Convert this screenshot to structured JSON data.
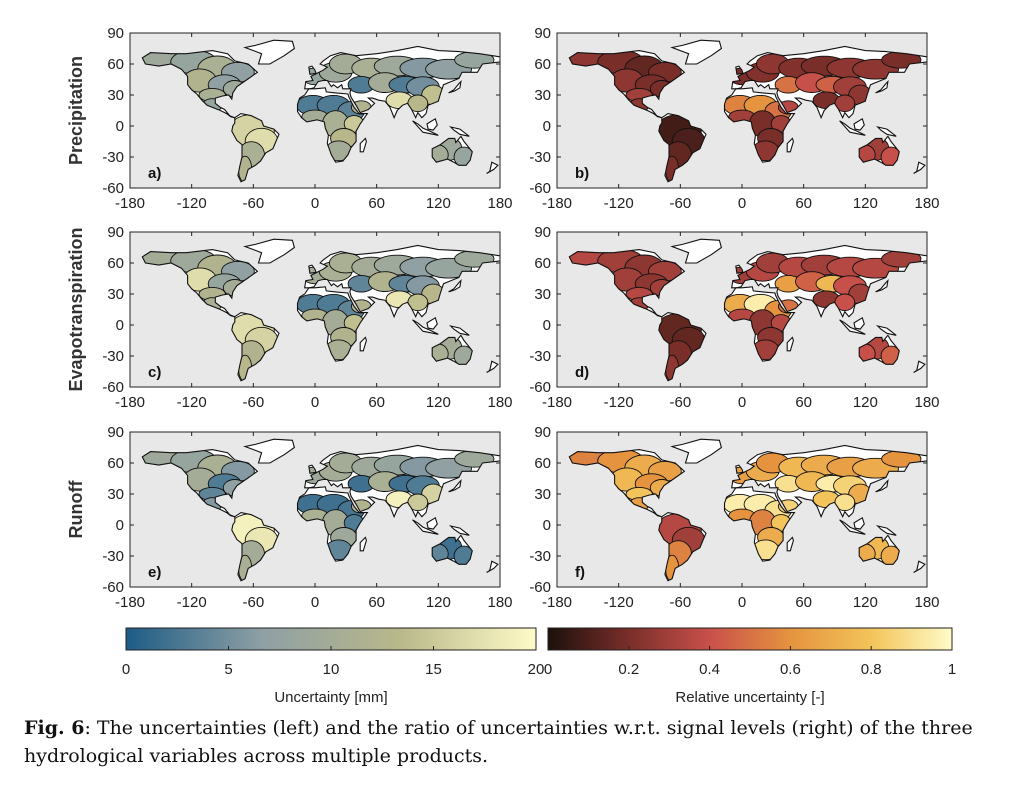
{
  "figure": {
    "row_labels": [
      "Precipitation",
      "Evapotranspiration",
      "Runoff"
    ],
    "panel_labels": [
      "a)",
      "b)",
      "c)",
      "d)",
      "e)",
      "f)"
    ],
    "y_ticks": [
      "90",
      "60",
      "30",
      "0",
      "-30",
      "-60"
    ],
    "x_ticks": [
      "-180",
      "-120",
      "-60",
      "0",
      "60",
      "120",
      "180"
    ],
    "colorbar_left": {
      "title": "Uncertainty [mm]",
      "ticks": [
        "0",
        "5",
        "10",
        "15",
        "20"
      ],
      "colors": [
        "#1d5c86",
        "#8fa0a4",
        "#b9b88a",
        "#fffbc8"
      ]
    },
    "colorbar_right": {
      "title": "Relative uncertainty [-]",
      "ticks": [
        "0",
        "0.2",
        "0.4",
        "0.6",
        "0.8",
        "1"
      ],
      "colors": [
        "#1c100b",
        "#7a2e2a",
        "#c8504a",
        "#e5933f",
        "#f3c45a",
        "#fffbc8"
      ]
    },
    "ocean_color": "#e8e8e8"
  },
  "caption": {
    "label": "Fig. 6",
    "text": ": The uncertainties (left) and the ratio of uncertainties w.r.t. signal levels (right) of the three hydrological variables across multiple products."
  }
}
